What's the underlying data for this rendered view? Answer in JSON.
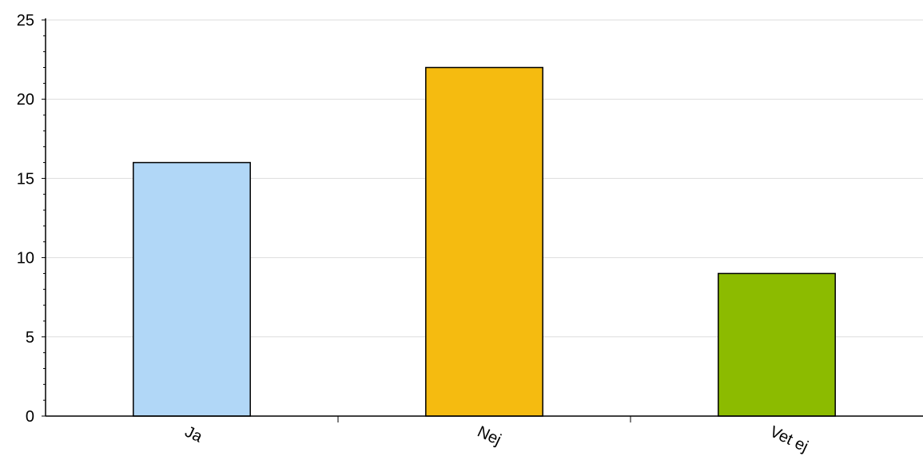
{
  "chart_data": {
    "type": "bar",
    "categories": [
      "Ja",
      "Nej",
      "Vet ej"
    ],
    "values": [
      16,
      22,
      9
    ],
    "colors": [
      "#b1d7f7",
      "#f5bb10",
      "#8cbb00"
    ],
    "ylim": [
      0,
      25
    ],
    "yticks": [
      "0",
      "5",
      "10",
      "15",
      "20",
      "25"
    ],
    "grid": true,
    "gridColor": "#dddddd",
    "title": "",
    "xlabel": "",
    "ylabel": ""
  }
}
